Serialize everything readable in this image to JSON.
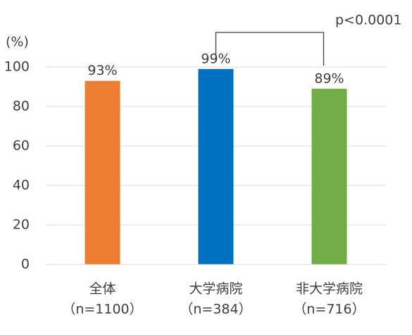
{
  "chart_data": {
    "type": "bar",
    "y_label": "(%)",
    "categories": [
      "全体",
      "大学病院",
      "非大学病院"
    ],
    "category_sublabels": [
      "（n=1100）",
      "（n=384）",
      "（n=716）"
    ],
    "values": [
      93,
      99,
      89
    ],
    "value_labels": [
      "93%",
      "99%",
      "89%"
    ],
    "colors": [
      "#ed7d31",
      "#0070c0",
      "#70ad47"
    ],
    "ylim": [
      0,
      100
    ],
    "yticks": [
      0,
      20,
      40,
      60,
      80,
      100
    ],
    "grid": true,
    "annotation": "p<0.0001"
  }
}
